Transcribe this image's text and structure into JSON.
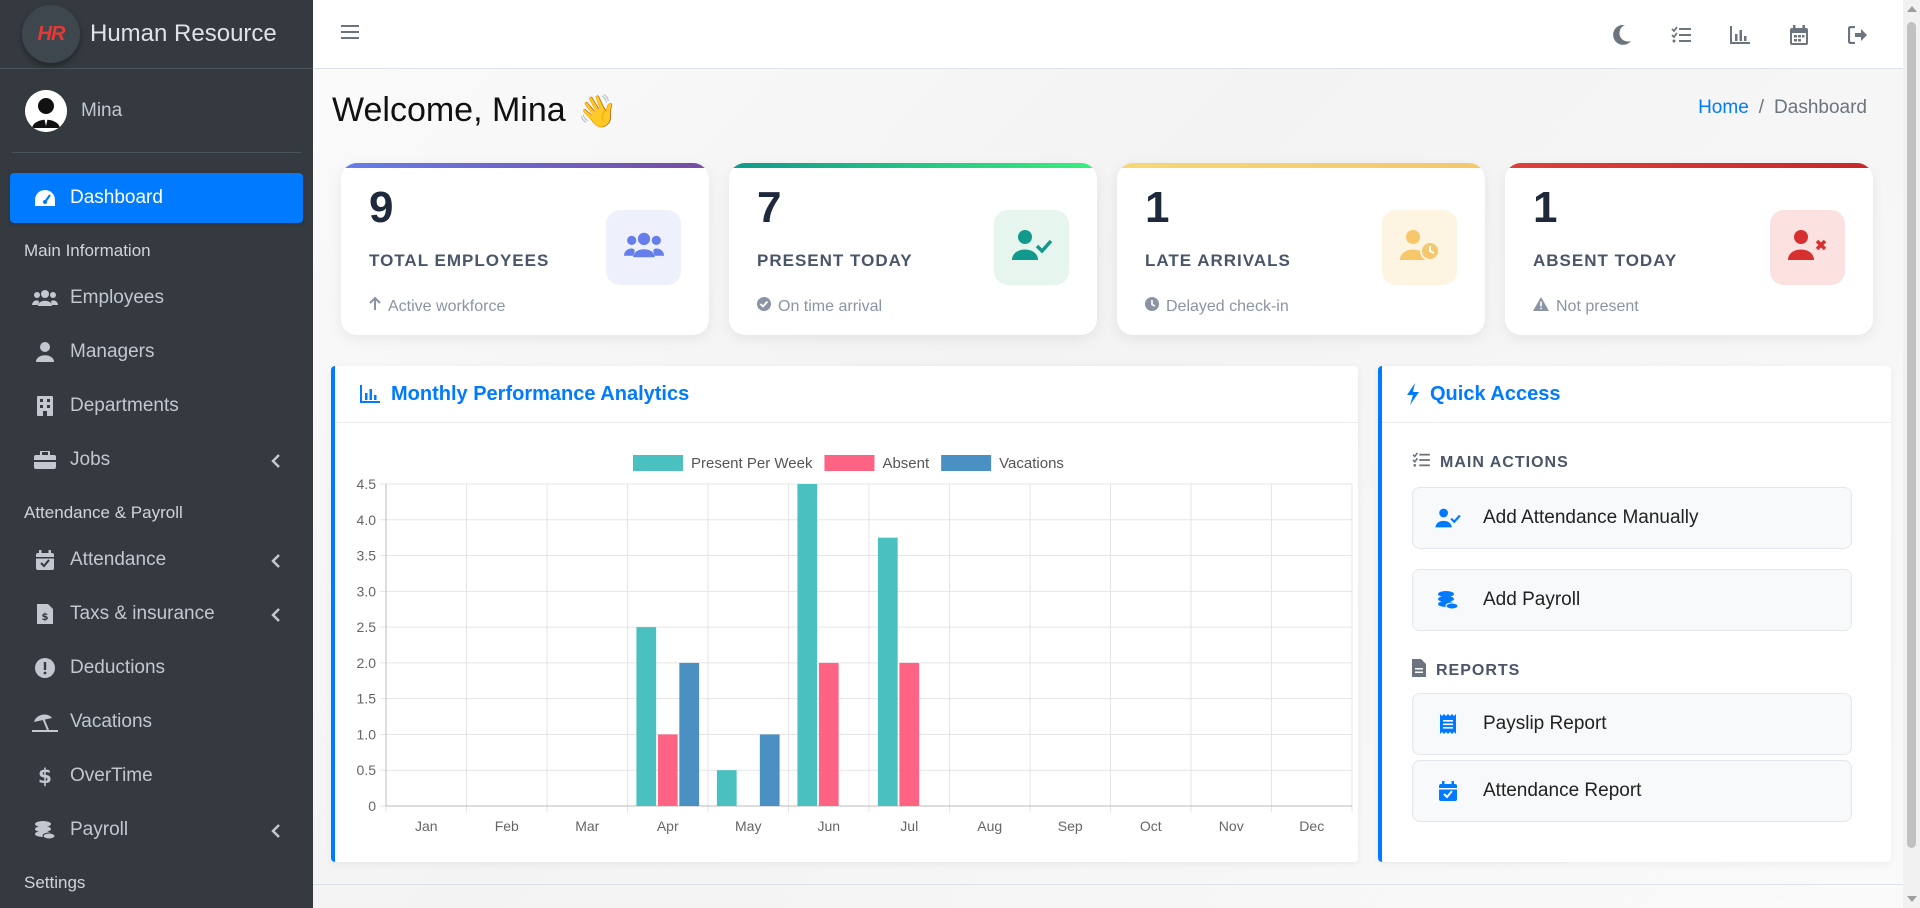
{
  "brand": {
    "logo_text": "HR",
    "name": "Human Resource"
  },
  "user": {
    "name": "Mina"
  },
  "sidebar": {
    "items": [
      {
        "label": "Dashboard"
      },
      {
        "label": "Employees"
      },
      {
        "label": "Managers"
      },
      {
        "label": "Departments"
      },
      {
        "label": "Jobs"
      },
      {
        "label": "Attendance"
      },
      {
        "label": "Taxs & insurance"
      },
      {
        "label": "Deductions"
      },
      {
        "label": "Vacations"
      },
      {
        "label": "OverTime"
      },
      {
        "label": "Payroll"
      }
    ],
    "headers": {
      "main": "Main Information",
      "attendance": "Attendance & Payroll",
      "settings": "Settings"
    }
  },
  "welcome": "Welcome, Mina",
  "breadcrumb": {
    "home": "Home",
    "current": "Dashboard",
    "sep": "/"
  },
  "stats": [
    {
      "value": "9",
      "label": "TOTAL EMPLOYEES",
      "sub": "Active workforce",
      "color": "#667eea"
    },
    {
      "value": "7",
      "label": "PRESENT TODAY",
      "sub": "On time arrival",
      "color": "#11998e"
    },
    {
      "value": "1",
      "label": "LATE ARRIVALS",
      "sub": "Delayed check-in",
      "color": "#f6c76b"
    },
    {
      "value": "1",
      "label": "ABSENT TODAY",
      "sub": "Not present",
      "color": "#e0403a"
    }
  ],
  "analytics": {
    "title": "Monthly Performance Analytics"
  },
  "quick_access": {
    "title": "Quick Access",
    "main_actions": "MAIN ACTIONS",
    "reports": "REPORTS",
    "add_attendance": "Add Attendance Manually",
    "add_payroll": "Add Payroll",
    "payslip_report": "Payslip Report",
    "attendance_report": "Attendance Report"
  },
  "chart_data": {
    "type": "bar",
    "categories": [
      "Jan",
      "Feb",
      "Mar",
      "Apr",
      "May",
      "Jun",
      "Jul",
      "Aug",
      "Sep",
      "Oct",
      "Nov",
      "Dec"
    ],
    "series": [
      {
        "name": "Present Per Week",
        "color": "#4bc0c0",
        "values": [
          0,
          0,
          0,
          2.5,
          0.5,
          4.5,
          3.75,
          0,
          0,
          0,
          0,
          0
        ]
      },
      {
        "name": "Absent",
        "color": "#ff6384",
        "values": [
          0,
          0,
          0,
          1,
          0,
          2,
          2,
          0,
          0,
          0,
          0,
          0
        ]
      },
      {
        "name": "Vacations",
        "color": "#4a90c2",
        "values": [
          0,
          0,
          0,
          2,
          1,
          0,
          0,
          0,
          0,
          0,
          0,
          0
        ]
      }
    ],
    "yticks": [
      "0",
      "0.5",
      "1.0",
      "1.5",
      "2.0",
      "2.5",
      "3.0",
      "3.5",
      "4.0",
      "4.5"
    ],
    "ylim": [
      0,
      4.5
    ],
    "legend": "top",
    "grid": true
  }
}
